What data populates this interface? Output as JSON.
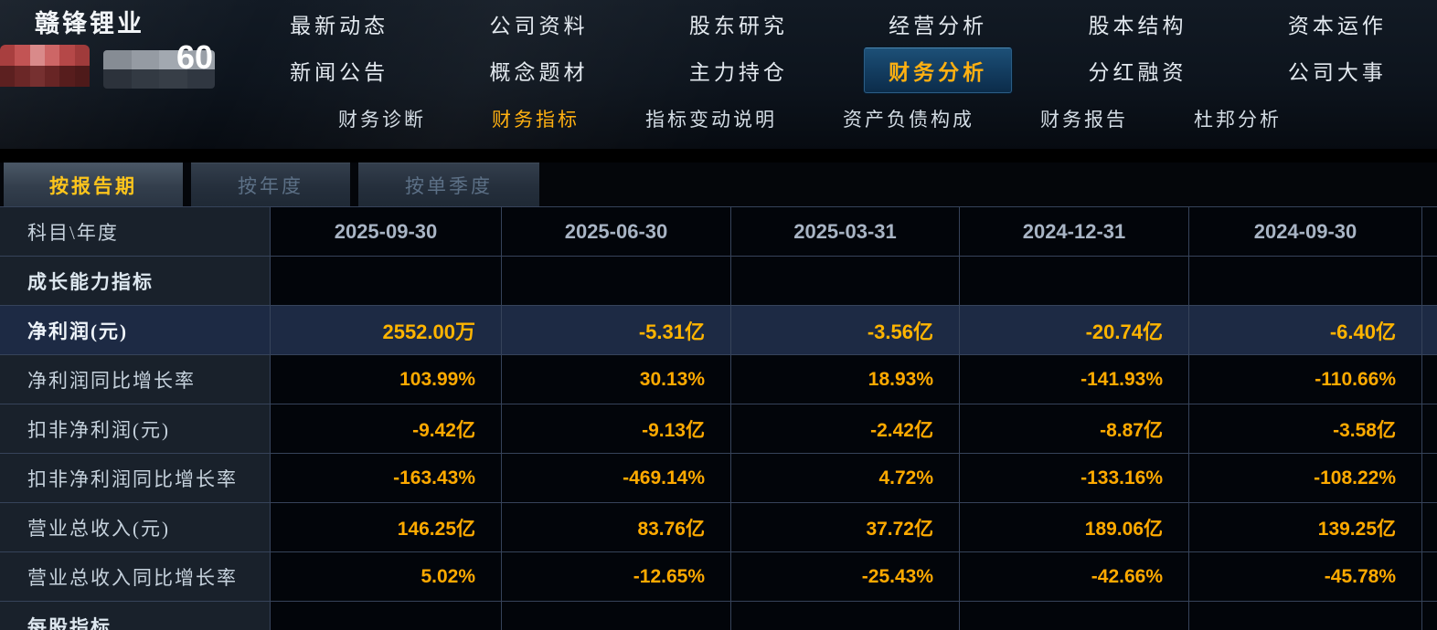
{
  "header": {
    "stock_name": "赣锋锂业",
    "code_suffix": "60",
    "nav": [
      {
        "label": "最新动态",
        "active": false
      },
      {
        "label": "公司资料",
        "active": false
      },
      {
        "label": "股东研究",
        "active": false
      },
      {
        "label": "经营分析",
        "active": false
      },
      {
        "label": "股本结构",
        "active": false
      },
      {
        "label": "资本运作",
        "active": false
      },
      {
        "label": "新闻公告",
        "active": false
      },
      {
        "label": "概念题材",
        "active": false
      },
      {
        "label": "主力持仓",
        "active": false
      },
      {
        "label": "财务分析",
        "active": true
      },
      {
        "label": "分红融资",
        "active": false
      },
      {
        "label": "公司大事",
        "active": false
      }
    ]
  },
  "subnav": {
    "items": [
      {
        "label": "财务诊断",
        "active": false
      },
      {
        "label": "财务指标",
        "active": true
      },
      {
        "label": "指标变动说明",
        "active": false
      },
      {
        "label": "资产负债构成",
        "active": false
      },
      {
        "label": "财务报告",
        "active": false
      },
      {
        "label": "杜邦分析",
        "active": false
      }
    ]
  },
  "tabs": [
    {
      "label": "按报告期",
      "active": true
    },
    {
      "label": "按年度",
      "active": false
    },
    {
      "label": "按单季度",
      "active": false
    }
  ],
  "table": {
    "corner_label": "科目\\年度",
    "columns": [
      "2025-09-30",
      "2025-06-30",
      "2025-03-31",
      "2024-12-31",
      "2024-09-30"
    ],
    "rows": [
      {
        "label": "成长能力指标",
        "type": "section",
        "values": [
          "",
          "",
          "",
          "",
          ""
        ]
      },
      {
        "label": "净利润(元)",
        "type": "highlight",
        "values": [
          "2552.00万",
          "-5.31亿",
          "-3.56亿",
          "-20.74亿",
          "-6.40亿"
        ]
      },
      {
        "label": "净利润同比增长率",
        "type": "normal",
        "values": [
          "103.99%",
          "30.13%",
          "18.93%",
          "-141.93%",
          "-110.66%"
        ]
      },
      {
        "label": "扣非净利润(元)",
        "type": "normal",
        "values": [
          "-9.42亿",
          "-9.13亿",
          "-2.42亿",
          "-8.87亿",
          "-3.58亿"
        ]
      },
      {
        "label": "扣非净利润同比增长率",
        "type": "normal",
        "values": [
          "-163.43%",
          "-469.14%",
          "4.72%",
          "-133.16%",
          "-108.22%"
        ]
      },
      {
        "label": "营业总收入(元)",
        "type": "normal",
        "values": [
          "146.25亿",
          "83.76亿",
          "37.72亿",
          "189.06亿",
          "139.25亿"
        ]
      },
      {
        "label": "营业总收入同比增长率",
        "type": "normal",
        "values": [
          "5.02%",
          "-12.65%",
          "-25.43%",
          "-42.66%",
          "-45.78%"
        ]
      },
      {
        "label": "每股指标",
        "type": "section",
        "values": [
          "",
          "",
          "",
          "",
          ""
        ]
      }
    ]
  },
  "colors": {
    "value_orange": "#ffaa00",
    "active_yellow": "#ffb011",
    "active_nav_blue": "#143f63",
    "highlight_row_bg": "#1d2a44",
    "table_border": "#36435a"
  }
}
